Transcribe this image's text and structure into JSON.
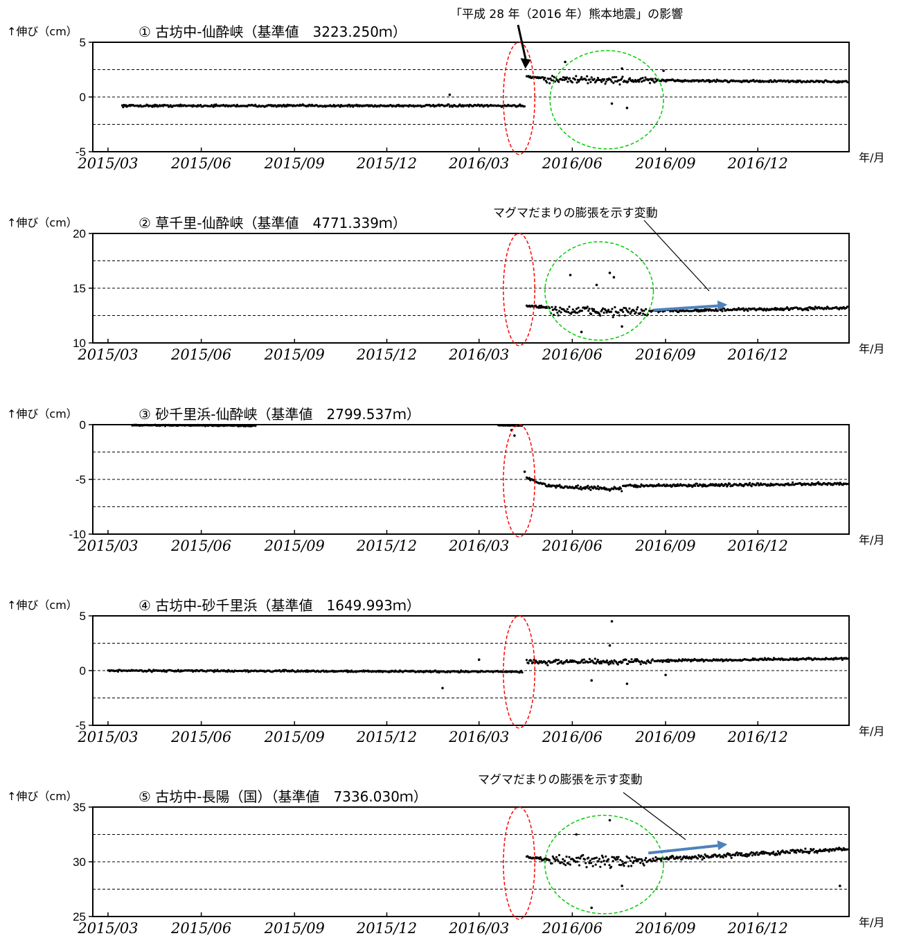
{
  "figure": {
    "y_unit_label": "↑伸び（cm）",
    "x_unit_label": "年/月",
    "x_ticks": [
      "2015/03",
      "2015/06",
      "2015/09",
      "2015/12",
      "2016/03",
      "2016/06",
      "2016/09",
      "2016/12"
    ],
    "annotations": {
      "earthquake": "「平成 28 年（2016 年）熊本地震」の影響",
      "magma_1": "マグマだまりの膨張を示す変動",
      "magma_2": "マグマだまりの膨張を示す変動"
    },
    "colors": {
      "dashed_red": "#ff0000",
      "dashed_green": "#00cc00",
      "trend_arrow": "#4f81bd",
      "points": "#000000"
    }
  },
  "chart_data": [
    {
      "type": "scatter",
      "title": "① 古坊中-仙酔峡（基準値　3223.250ｍ）",
      "ylim": [
        -5,
        5
      ],
      "yticks": [
        "5",
        "0",
        "-5"
      ],
      "gridlines": [
        2.5,
        0,
        -2.5
      ],
      "segments": [
        {
          "from": "2015/03/15",
          "to": "2016/04/15",
          "start": -0.8,
          "end": -0.8,
          "scatter": 0.15
        },
        {
          "from": "2016/04/17",
          "to": "2016/05/05",
          "start": 1.9,
          "end": 1.7,
          "scatter": 0.2
        },
        {
          "from": "2016/05/06",
          "to": "2016/08/25",
          "start": 1.6,
          "end": 1.5,
          "scatter": 0.5
        },
        {
          "from": "2016/08/26",
          "to": "2017/02/28",
          "start": 1.5,
          "end": 1.4,
          "scatter": 0.15
        }
      ],
      "outliers": [
        [
          "2016/02/01",
          0.2
        ],
        [
          "2016/05/25",
          3.2
        ],
        [
          "2016/07/10",
          -0.6
        ],
        [
          "2016/07/20",
          2.6
        ],
        [
          "2016/07/25",
          -1.0
        ],
        [
          "2016/08/30",
          2.4
        ]
      ],
      "marks": {
        "red_ellipse": {
          "from": "2016/03/25",
          "to": "2016/04/25"
        },
        "green_ellipse": {
          "from": "2016/05/10",
          "to": "2016/08/30"
        },
        "arrow_to": "2016/04/15"
      }
    },
    {
      "type": "scatter",
      "title": "② 草千里-仙酔峡（基準値　4771.339ｍ）",
      "ylim": [
        10,
        20
      ],
      "yticks": [
        "20",
        "15",
        "10"
      ],
      "gridlines": [
        17.5,
        15,
        12.5
      ],
      "segments": [
        {
          "from": "2016/04/17",
          "to": "2016/05/10",
          "start": 13.4,
          "end": 13.2,
          "scatter": 0.2
        },
        {
          "from": "2016/05/11",
          "to": "2016/08/15",
          "start": 13.0,
          "end": 12.8,
          "scatter": 0.7
        },
        {
          "from": "2016/08/16",
          "to": "2017/02/28",
          "start": 12.9,
          "end": 13.2,
          "scatter": 0.2
        }
      ],
      "outliers": [
        [
          "2016/05/30",
          16.2
        ],
        [
          "2016/07/08",
          16.4
        ],
        [
          "2016/07/12",
          16.0
        ],
        [
          "2016/06/10",
          11.0
        ],
        [
          "2016/07/20",
          11.5
        ],
        [
          "2016/06/25",
          15.3
        ]
      ],
      "marks": {
        "red_ellipse": {
          "from": "2016/03/25",
          "to": "2016/04/25"
        },
        "green_ellipse": {
          "from": "2016/05/05",
          "to": "2016/08/20"
        },
        "trend_arrow": {
          "from": [
            "2016/08/20",
            13.0
          ],
          "to": [
            "2016/11/01",
            13.5
          ]
        }
      }
    },
    {
      "type": "scatter",
      "title": "③ 砂千里浜-仙酔峡（基準値　2799.537ｍ）",
      "ylim": [
        -10,
        0
      ],
      "yticks": [
        "0",
        "-5",
        "-10"
      ],
      "gridlines": [
        -2.5,
        -5,
        -7.5
      ],
      "segments": [
        {
          "from": "2015/03/25",
          "to": "2015/07/25",
          "start": -0.05,
          "end": -0.1,
          "scatter": 0.08
        },
        {
          "from": "2016/03/20",
          "to": "2016/04/13",
          "start": -0.05,
          "end": -0.1,
          "scatter": 0.05
        },
        {
          "from": "2016/04/17",
          "to": "2016/05/05",
          "start": -4.8,
          "end": -5.5,
          "scatter": 0.2
        },
        {
          "from": "2016/05/06",
          "to": "2016/07/20",
          "start": -5.6,
          "end": -5.9,
          "scatter": 0.25
        },
        {
          "from": "2016/07/21",
          "to": "2017/02/28",
          "start": -5.6,
          "end": -5.4,
          "scatter": 0.2
        }
      ],
      "outliers": [
        [
          "2016/04/05",
          -1.0
        ],
        [
          "2016/04/02",
          -0.5
        ],
        [
          "2016/04/15",
          -4.3
        ]
      ],
      "marks": {
        "red_ellipse": {
          "from": "2016/03/25",
          "to": "2016/04/25"
        }
      }
    },
    {
      "type": "scatter",
      "title": "④ 古坊中-砂千里浜（基準値　1649.993ｍ）",
      "ylim": [
        -5,
        5
      ],
      "yticks": [
        "5",
        "0",
        "-5"
      ],
      "gridlines": [
        2.5,
        0,
        -2.5
      ],
      "segments": [
        {
          "from": "2015/03/01",
          "to": "2016/04/13",
          "start": 0.0,
          "end": -0.1,
          "scatter": 0.12
        },
        {
          "from": "2016/04/17",
          "to": "2016/08/20",
          "start": 0.8,
          "end": 0.8,
          "scatter": 0.4
        },
        {
          "from": "2016/08/21",
          "to": "2017/02/28",
          "start": 0.9,
          "end": 1.1,
          "scatter": 0.15
        }
      ],
      "outliers": [
        [
          "2016/01/25",
          -1.6
        ],
        [
          "2016/03/01",
          1.0
        ],
        [
          "2016/07/10",
          4.5
        ],
        [
          "2016/07/08",
          2.3
        ],
        [
          "2016/07/25",
          -1.2
        ],
        [
          "2016/06/20",
          -0.9
        ],
        [
          "2016/09/01",
          -0.4
        ]
      ],
      "marks": {
        "red_ellipse": {
          "from": "2016/03/25",
          "to": "2016/04/25"
        }
      }
    },
    {
      "type": "scatter",
      "title": "⑤ 古坊中-長陽（国）（基準値　7336.030ｍ）",
      "ylim": [
        25,
        35
      ],
      "yticks": [
        "35",
        "30",
        "25"
      ],
      "gridlines": [
        32.5,
        30,
        27.5
      ],
      "segments": [
        {
          "from": "2016/04/17",
          "to": "2016/05/10",
          "start": 30.4,
          "end": 30.2,
          "scatter": 0.2
        },
        {
          "from": "2016/05/11",
          "to": "2016/08/15",
          "start": 30.1,
          "end": 30.0,
          "scatter": 0.8
        },
        {
          "from": "2016/08/16",
          "to": "2017/02/28",
          "start": 30.2,
          "end": 31.2,
          "scatter": 0.3
        }
      ],
      "outliers": [
        [
          "2016/07/08",
          33.8
        ],
        [
          "2016/06/20",
          25.8
        ],
        [
          "2016/06/05",
          32.5
        ],
        [
          "2016/07/20",
          27.8
        ],
        [
          "2017/02/20",
          27.8
        ]
      ],
      "marks": {
        "red_ellipse": {
          "from": "2016/03/25",
          "to": "2016/04/25"
        },
        "green_ellipse": {
          "from": "2016/05/05",
          "to": "2016/08/30"
        },
        "trend_arrow": {
          "from": [
            "2016/08/15",
            30.8
          ],
          "to": [
            "2016/11/01",
            31.6
          ]
        }
      }
    }
  ]
}
